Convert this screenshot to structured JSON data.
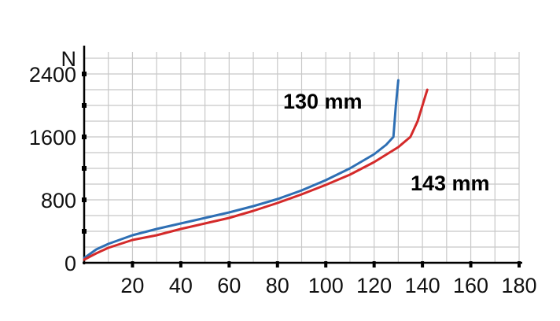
{
  "chart_data": {
    "type": "line",
    "title": "",
    "xlabel": "",
    "ylabel": "N",
    "xlim": [
      0,
      180
    ],
    "ylim": [
      0,
      2700
    ],
    "x_ticks": [
      20,
      40,
      60,
      80,
      100,
      120,
      140,
      160,
      180
    ],
    "y_ticks": [
      0,
      800,
      1600,
      2400
    ],
    "grid": true,
    "series": [
      {
        "name": "130 mm",
        "color": "#2e6fb4",
        "x": [
          0,
          5,
          10,
          20,
          30,
          40,
          50,
          60,
          70,
          80,
          90,
          100,
          110,
          120,
          125,
          128,
          129,
          130
        ],
        "y": [
          60,
          170,
          240,
          350,
          430,
          500,
          570,
          640,
          720,
          810,
          920,
          1050,
          1200,
          1380,
          1500,
          1600,
          2000,
          2320
        ]
      },
      {
        "name": "143 mm",
        "color": "#d42a2a",
        "x": [
          0,
          5,
          10,
          20,
          30,
          40,
          50,
          60,
          70,
          80,
          90,
          100,
          110,
          120,
          130,
          135,
          138,
          141,
          142
        ],
        "y": [
          40,
          120,
          190,
          290,
          350,
          430,
          500,
          570,
          660,
          760,
          870,
          990,
          1120,
          1280,
          1470,
          1600,
          1800,
          2100,
          2200
        ]
      }
    ],
    "annotations": [
      "130 mm",
      "143 mm"
    ]
  }
}
